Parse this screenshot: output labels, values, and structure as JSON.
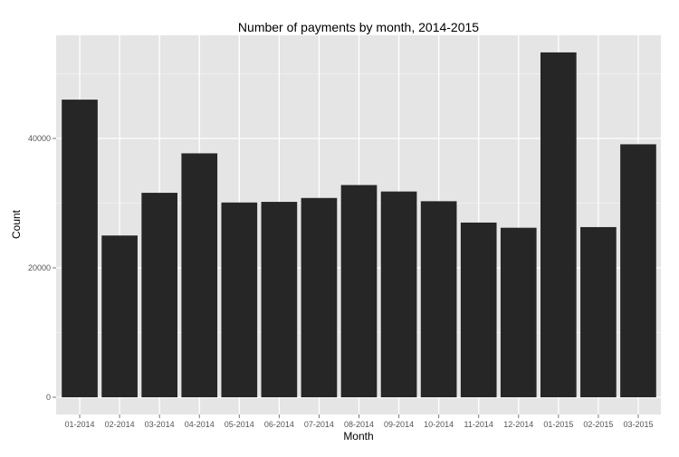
{
  "chart_data": {
    "type": "bar",
    "title": "Number of payments by month, 2014-2015",
    "xlabel": "Month",
    "ylabel": "Count",
    "categories": [
      "01-2014",
      "02-2014",
      "03-2014",
      "04-2014",
      "05-2014",
      "06-2014",
      "07-2014",
      "08-2014",
      "09-2014",
      "10-2014",
      "11-2014",
      "12-2014",
      "01-2015",
      "02-2015",
      "03-2015"
    ],
    "values": [
      46000,
      25000,
      31600,
      37700,
      30100,
      30200,
      30800,
      32800,
      31800,
      30300,
      27000,
      26200,
      53300,
      26300,
      39100
    ],
    "y_ticks": [
      0,
      20000,
      40000
    ],
    "ylim": [
      0,
      57000
    ],
    "grid": true,
    "legend": "none",
    "colors": {
      "bar": "#262626",
      "panel": "#e5e5e5",
      "grid_major": "#ffffff",
      "grid_minor": "#f2f2f2"
    }
  }
}
